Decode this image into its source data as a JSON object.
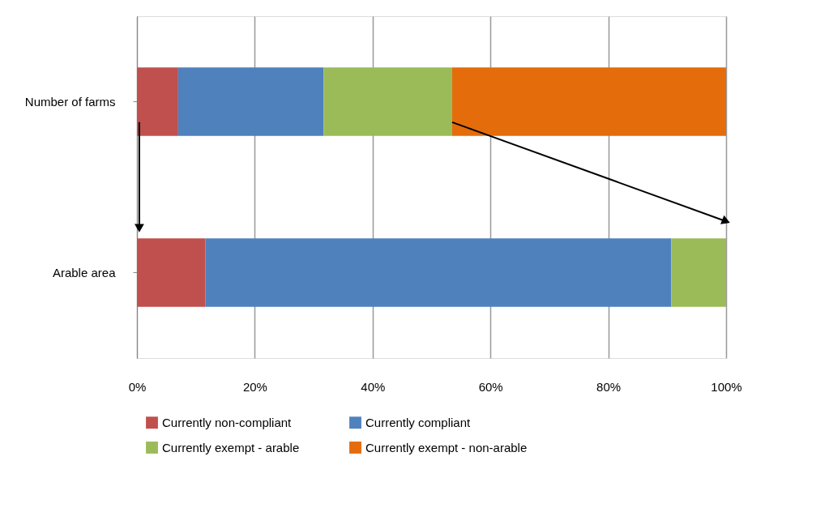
{
  "chart_data": {
    "type": "bar",
    "orientation": "horizontal",
    "stacked": true,
    "categories": [
      "Number of farms",
      "Arable area"
    ],
    "series": [
      {
        "name": "Currently non-compliant",
        "color": "#c0504d",
        "values": [
          7.0,
          11.6
        ]
      },
      {
        "name": "Currently compliant",
        "color": "#4f81bd",
        "values": [
          24.7,
          79.1
        ]
      },
      {
        "name": "Currently exempt - arable",
        "color": "#9bbb59",
        "values": [
          21.8,
          9.3
        ]
      },
      {
        "name": "Currently exempt - non-arable",
        "color": "#e46c0a",
        "values": [
          46.5,
          0
        ]
      }
    ],
    "xlim": [
      0,
      100
    ],
    "xticks": [
      {
        "value": 0,
        "label": "0%"
      },
      {
        "value": 20,
        "label": "20%"
      },
      {
        "value": 40,
        "label": "40%"
      },
      {
        "value": 60,
        "label": "60%"
      },
      {
        "value": 80,
        "label": "80%"
      },
      {
        "value": 100,
        "label": "100%"
      }
    ],
    "grid": "x",
    "legend": "bottom"
  }
}
